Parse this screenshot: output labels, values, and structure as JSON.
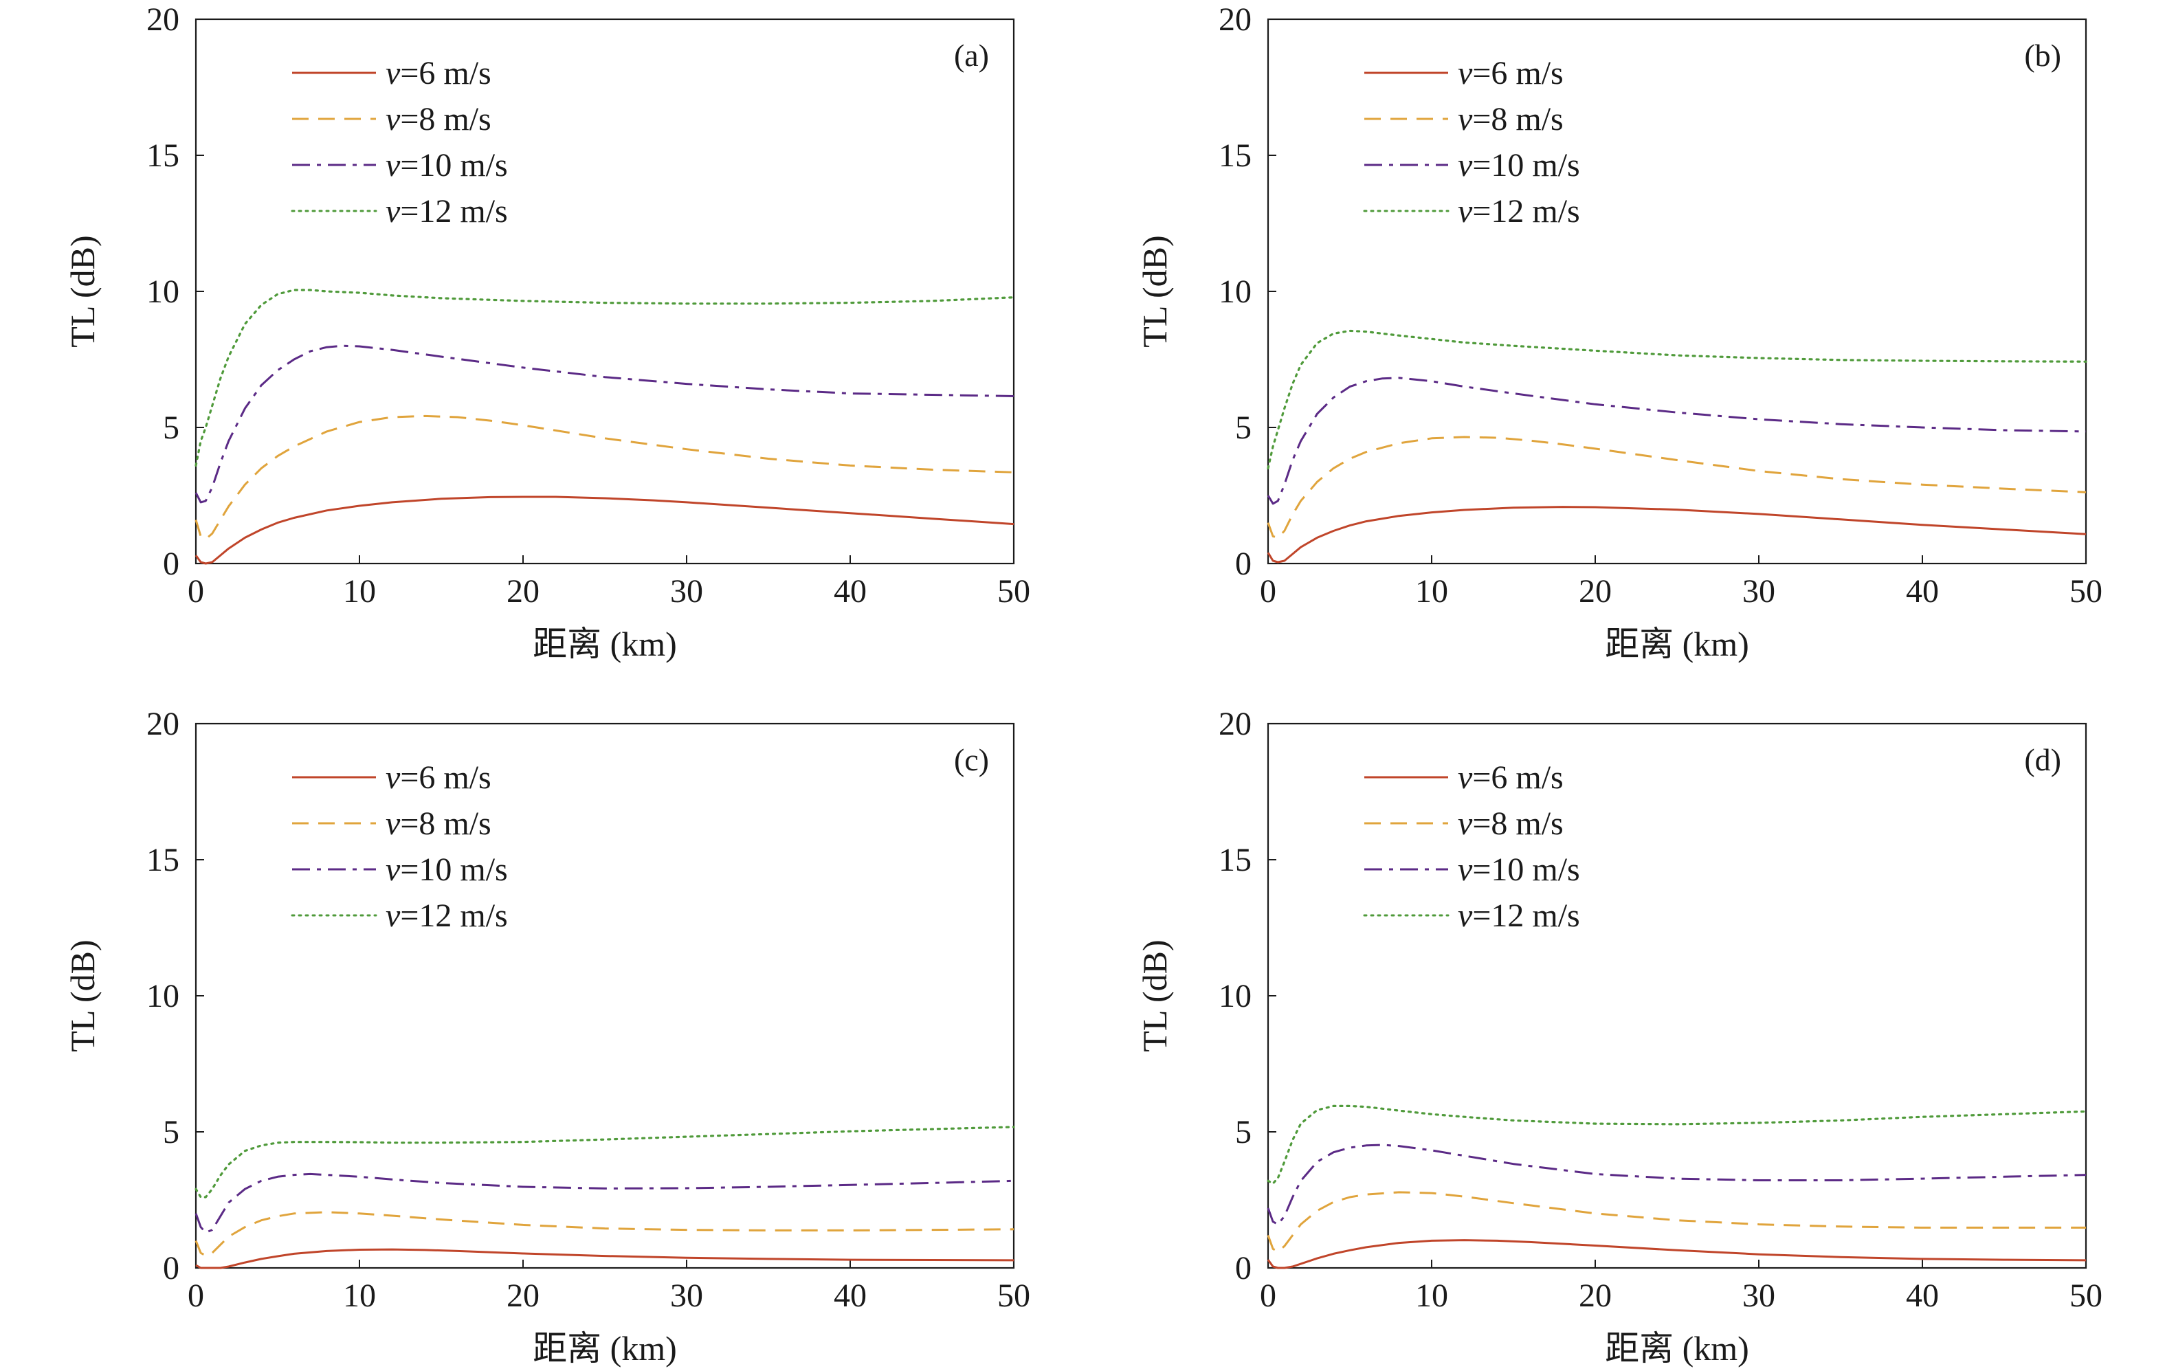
{
  "colors": {
    "axis": "#1a1a1a",
    "v6": "#c0452a",
    "v8": "#e0a43c",
    "v10": "#5b2a86",
    "v12": "#4f9a3a"
  },
  "chart_data": [
    {
      "type": "line",
      "panel_label": "(a)",
      "xlabel": "距离 (km)",
      "ylabel": "TL (dB)",
      "xlim": [
        0,
        50
      ],
      "ylim": [
        0,
        20
      ],
      "xticks": [
        0,
        10,
        20,
        30,
        40,
        50
      ],
      "yticks": [
        0,
        5,
        10,
        15,
        20
      ],
      "grid": false,
      "legend_position": "top-left",
      "series": [
        {
          "name": "v=6 m/s",
          "name_var": "v",
          "name_rest": "=6 m/s",
          "style": "solid",
          "color": "#c0452a",
          "x": [
            0,
            0.3,
            0.6,
            1,
            1.5,
            2,
            3,
            4,
            5,
            6,
            8,
            10,
            12,
            15,
            18,
            20,
            22,
            25,
            28,
            30,
            35,
            40,
            45,
            50
          ],
          "y": [
            0.3,
            0.05,
            0,
            0.05,
            0.3,
            0.55,
            0.95,
            1.25,
            1.5,
            1.68,
            1.95,
            2.12,
            2.25,
            2.38,
            2.44,
            2.45,
            2.45,
            2.4,
            2.32,
            2.25,
            2.05,
            1.85,
            1.65,
            1.45
          ]
        },
        {
          "name": "v=8 m/s",
          "name_var": "v",
          "name_rest": "=8 m/s",
          "style": "dashed",
          "color": "#e0a43c",
          "x": [
            0,
            0.3,
            0.6,
            1,
            1.5,
            2,
            3,
            4,
            5,
            6,
            8,
            10,
            12,
            14,
            16,
            18,
            20,
            25,
            30,
            35,
            40,
            45,
            50
          ],
          "y": [
            1.6,
            1.0,
            0.9,
            1.1,
            1.6,
            2.1,
            2.9,
            3.5,
            3.95,
            4.3,
            4.85,
            5.2,
            5.38,
            5.42,
            5.38,
            5.25,
            5.08,
            4.6,
            4.2,
            3.85,
            3.6,
            3.45,
            3.35
          ]
        },
        {
          "name": "v=10 m/s",
          "name_var": "v",
          "name_rest": "=10 m/s",
          "style": "dashdot",
          "color": "#5b2a86",
          "x": [
            0,
            0.3,
            0.6,
            1,
            1.5,
            2,
            3,
            4,
            5,
            6,
            7,
            8,
            9,
            10,
            12,
            15,
            20,
            25,
            30,
            35,
            40,
            45,
            50
          ],
          "y": [
            2.6,
            2.25,
            2.3,
            2.8,
            3.7,
            4.5,
            5.7,
            6.55,
            7.1,
            7.5,
            7.8,
            7.95,
            8.0,
            7.98,
            7.85,
            7.6,
            7.2,
            6.85,
            6.6,
            6.4,
            6.25,
            6.2,
            6.15
          ]
        },
        {
          "name": "v=12 m/s",
          "name_var": "v",
          "name_rest": "=12 m/s",
          "style": "dotted",
          "color": "#4f9a3a",
          "x": [
            0,
            0.3,
            0.6,
            1,
            1.5,
            2,
            3,
            4,
            5,
            6,
            7,
            8,
            10,
            12,
            15,
            20,
            25,
            30,
            35,
            40,
            45,
            50
          ],
          "y": [
            3.6,
            4.5,
            5.0,
            5.8,
            6.8,
            7.6,
            8.8,
            9.5,
            9.9,
            10.05,
            10.05,
            10.0,
            9.95,
            9.85,
            9.75,
            9.65,
            9.58,
            9.55,
            9.55,
            9.58,
            9.65,
            9.78
          ]
        }
      ]
    },
    {
      "type": "line",
      "panel_label": "(b)",
      "xlabel": "距离 (km)",
      "ylabel": "TL (dB)",
      "xlim": [
        0,
        50
      ],
      "ylim": [
        0,
        20
      ],
      "xticks": [
        0,
        10,
        20,
        30,
        40,
        50
      ],
      "yticks": [
        0,
        5,
        10,
        15,
        20
      ],
      "grid": false,
      "legend_position": "top-left",
      "series": [
        {
          "name": "v=6 m/s",
          "name_var": "v",
          "name_rest": "=6 m/s",
          "style": "solid",
          "color": "#c0452a",
          "x": [
            0,
            0.3,
            0.6,
            1,
            1.5,
            2,
            3,
            4,
            5,
            6,
            8,
            10,
            12,
            15,
            18,
            20,
            25,
            30,
            35,
            40,
            45,
            50
          ],
          "y": [
            0.4,
            0.1,
            0.05,
            0.1,
            0.35,
            0.6,
            0.95,
            1.2,
            1.4,
            1.55,
            1.75,
            1.88,
            1.97,
            2.05,
            2.08,
            2.07,
            1.98,
            1.82,
            1.62,
            1.42,
            1.25,
            1.08
          ]
        },
        {
          "name": "v=8 m/s",
          "name_var": "v",
          "name_rest": "=8 m/s",
          "style": "dashed",
          "color": "#e0a43c",
          "x": [
            0,
            0.3,
            0.6,
            1,
            1.5,
            2,
            3,
            4,
            5,
            6,
            8,
            10,
            12,
            14,
            16,
            18,
            20,
            25,
            30,
            35,
            40,
            45,
            50
          ],
          "y": [
            1.5,
            1.0,
            0.95,
            1.2,
            1.8,
            2.3,
            3.0,
            3.5,
            3.85,
            4.1,
            4.42,
            4.6,
            4.65,
            4.62,
            4.52,
            4.38,
            4.22,
            3.8,
            3.4,
            3.1,
            2.9,
            2.75,
            2.62
          ]
        },
        {
          "name": "v=10 m/s",
          "name_var": "v",
          "name_rest": "=10 m/s",
          "style": "dashdot",
          "color": "#5b2a86",
          "x": [
            0,
            0.3,
            0.6,
            1,
            1.5,
            2,
            3,
            4,
            5,
            6,
            7,
            8,
            10,
            12,
            15,
            20,
            25,
            30,
            35,
            40,
            45,
            50
          ],
          "y": [
            2.5,
            2.2,
            2.3,
            2.9,
            3.8,
            4.5,
            5.5,
            6.1,
            6.5,
            6.7,
            6.8,
            6.82,
            6.7,
            6.5,
            6.25,
            5.85,
            5.55,
            5.3,
            5.12,
            5.0,
            4.9,
            4.85
          ]
        },
        {
          "name": "v=12 m/s",
          "name_var": "v",
          "name_rest": "=12 m/s",
          "style": "dotted",
          "color": "#4f9a3a",
          "x": [
            0,
            0.3,
            0.6,
            1,
            1.5,
            2,
            3,
            4,
            5,
            6,
            7,
            8,
            10,
            12,
            15,
            20,
            25,
            30,
            35,
            40,
            45,
            50
          ],
          "y": [
            3.5,
            4.3,
            4.9,
            5.7,
            6.6,
            7.3,
            8.1,
            8.45,
            8.55,
            8.52,
            8.45,
            8.38,
            8.25,
            8.12,
            8.0,
            7.82,
            7.65,
            7.55,
            7.48,
            7.45,
            7.43,
            7.42
          ]
        }
      ]
    },
    {
      "type": "line",
      "panel_label": "(c)",
      "xlabel": "距离 (km)",
      "ylabel": "TL (dB)",
      "xlim": [
        0,
        50
      ],
      "ylim": [
        0,
        20
      ],
      "xticks": [
        0,
        10,
        20,
        30,
        40,
        50
      ],
      "yticks": [
        0,
        5,
        10,
        15,
        20
      ],
      "grid": false,
      "legend_position": "top-left",
      "series": [
        {
          "name": "v=6 m/s",
          "name_var": "v",
          "name_rest": "=6 m/s",
          "style": "solid",
          "color": "#c0452a",
          "x": [
            0,
            0.3,
            0.6,
            1,
            1.5,
            2,
            3,
            4,
            5,
            6,
            8,
            10,
            12,
            14,
            16,
            20,
            25,
            30,
            35,
            40,
            45,
            50
          ],
          "y": [
            0.1,
            0,
            0,
            0,
            0,
            0.05,
            0.2,
            0.33,
            0.43,
            0.52,
            0.62,
            0.67,
            0.68,
            0.66,
            0.62,
            0.53,
            0.44,
            0.37,
            0.33,
            0.3,
            0.29,
            0.28
          ]
        },
        {
          "name": "v=8 m/s",
          "name_var": "v",
          "name_rest": "=8 m/s",
          "style": "dashed",
          "color": "#e0a43c",
          "x": [
            0,
            0.3,
            0.6,
            1,
            1.5,
            2,
            3,
            4,
            5,
            6,
            8,
            10,
            12,
            15,
            20,
            25,
            30,
            35,
            40,
            45,
            50
          ],
          "y": [
            1.0,
            0.55,
            0.45,
            0.55,
            0.85,
            1.15,
            1.5,
            1.75,
            1.9,
            2.0,
            2.05,
            2.0,
            1.92,
            1.78,
            1.58,
            1.45,
            1.4,
            1.38,
            1.38,
            1.4,
            1.42
          ]
        },
        {
          "name": "v=10 m/s",
          "name_var": "v",
          "name_rest": "=10 m/s",
          "style": "dashdot",
          "color": "#5b2a86",
          "x": [
            0,
            0.3,
            0.6,
            1,
            1.5,
            2,
            3,
            4,
            5,
            6,
            7,
            8,
            10,
            12,
            15,
            20,
            25,
            30,
            35,
            40,
            45,
            50
          ],
          "y": [
            2.0,
            1.5,
            1.3,
            1.4,
            1.9,
            2.4,
            2.9,
            3.2,
            3.35,
            3.42,
            3.45,
            3.42,
            3.35,
            3.25,
            3.12,
            2.98,
            2.92,
            2.93,
            2.98,
            3.05,
            3.12,
            3.2
          ]
        },
        {
          "name": "v=12 m/s",
          "name_var": "v",
          "name_rest": "=12 m/s",
          "style": "dotted",
          "color": "#4f9a3a",
          "x": [
            0,
            0.3,
            0.6,
            1,
            1.5,
            2,
            3,
            4,
            5,
            6,
            8,
            10,
            12,
            15,
            20,
            25,
            30,
            35,
            40,
            45,
            50
          ],
          "y": [
            2.9,
            2.6,
            2.6,
            2.9,
            3.4,
            3.8,
            4.3,
            4.5,
            4.6,
            4.63,
            4.63,
            4.62,
            4.6,
            4.6,
            4.63,
            4.72,
            4.82,
            4.92,
            5.02,
            5.1,
            5.18
          ]
        }
      ]
    },
    {
      "type": "line",
      "panel_label": "(d)",
      "xlabel": "距离 (km)",
      "ylabel": "TL (dB)",
      "xlim": [
        0,
        50
      ],
      "ylim": [
        0,
        20
      ],
      "xticks": [
        0,
        10,
        20,
        30,
        40,
        50
      ],
      "yticks": [
        0,
        5,
        10,
        15,
        20
      ],
      "grid": false,
      "legend_position": "top-left",
      "series": [
        {
          "name": "v=6 m/s",
          "name_var": "v",
          "name_rest": "=6 m/s",
          "style": "solid",
          "color": "#c0452a",
          "x": [
            0,
            0.3,
            0.6,
            1,
            1.5,
            2,
            3,
            4,
            5,
            6,
            8,
            10,
            12,
            14,
            16,
            20,
            25,
            30,
            35,
            40,
            45,
            50
          ],
          "y": [
            0.3,
            0.05,
            0,
            0,
            0.05,
            0.15,
            0.35,
            0.52,
            0.65,
            0.76,
            0.92,
            1.0,
            1.02,
            1.0,
            0.95,
            0.82,
            0.65,
            0.5,
            0.4,
            0.33,
            0.3,
            0.28
          ]
        },
        {
          "name": "v=8 m/s",
          "name_var": "v",
          "name_rest": "=8 m/s",
          "style": "dashed",
          "color": "#e0a43c",
          "x": [
            0,
            0.3,
            0.6,
            1,
            1.5,
            2,
            3,
            4,
            5,
            6,
            8,
            10,
            12,
            15,
            20,
            25,
            30,
            35,
            40,
            45,
            50
          ],
          "y": [
            1.2,
            0.7,
            0.6,
            0.8,
            1.2,
            1.6,
            2.1,
            2.42,
            2.6,
            2.7,
            2.78,
            2.75,
            2.62,
            2.38,
            2.0,
            1.75,
            1.6,
            1.52,
            1.48,
            1.48,
            1.48
          ]
        },
        {
          "name": "v=10 m/s",
          "name_var": "v",
          "name_rest": "=10 m/s",
          "style": "dashdot",
          "color": "#5b2a86",
          "x": [
            0,
            0.3,
            0.6,
            1,
            1.5,
            2,
            3,
            4,
            5,
            6,
            7,
            8,
            10,
            12,
            15,
            20,
            25,
            30,
            35,
            40,
            45,
            50
          ],
          "y": [
            2.2,
            1.7,
            1.6,
            1.9,
            2.6,
            3.2,
            3.9,
            4.25,
            4.42,
            4.5,
            4.52,
            4.48,
            4.32,
            4.12,
            3.82,
            3.45,
            3.28,
            3.22,
            3.22,
            3.28,
            3.35,
            3.42
          ]
        },
        {
          "name": "v=12 m/s",
          "name_var": "v",
          "name_rest": "=12 m/s",
          "style": "dotted",
          "color": "#4f9a3a",
          "x": [
            0,
            0.3,
            0.6,
            1,
            1.5,
            2,
            3,
            4,
            5,
            6,
            7,
            8,
            10,
            12,
            15,
            20,
            25,
            30,
            35,
            40,
            45,
            50
          ],
          "y": [
            3.2,
            3.1,
            3.3,
            3.9,
            4.7,
            5.3,
            5.8,
            5.95,
            5.95,
            5.92,
            5.85,
            5.78,
            5.65,
            5.55,
            5.42,
            5.3,
            5.28,
            5.33,
            5.42,
            5.55,
            5.65,
            5.75
          ]
        }
      ]
    }
  ]
}
